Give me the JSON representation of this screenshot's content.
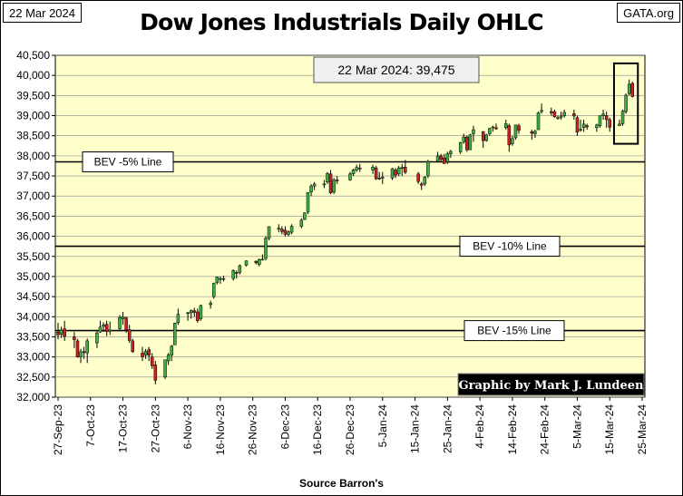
{
  "header": {
    "date": "22 Mar 2024",
    "site": "GATA.org",
    "title": "Dow Jones Industrials Daily OHLC"
  },
  "footer": {
    "source": "Source Barron's"
  },
  "colors": {
    "plot_background": "#FFFFCC",
    "up_candle": "#3CB043",
    "down_candle": "#CC2222",
    "grid": "#888888",
    "credit_background": "#000000",
    "credit_text": "#FFFFFF"
  },
  "chart_data": {
    "type": "ohlc",
    "title": "Dow Jones Industrials Daily OHLC",
    "ylim": [
      32000,
      40500
    ],
    "yticks": [
      32000,
      32500,
      33000,
      33500,
      34000,
      34500,
      35000,
      35500,
      36000,
      36500,
      37000,
      37500,
      38000,
      38500,
      39000,
      39500,
      40000,
      40500
    ],
    "ytick_labels": [
      "32,000",
      "32,500",
      "33,000",
      "33,500",
      "34,000",
      "34,500",
      "35,000",
      "35,500",
      "36,000",
      "36,500",
      "37,000",
      "37,500",
      "38,000",
      "38,500",
      "39,000",
      "39,500",
      "40,000",
      "40,500"
    ],
    "xlim": [
      "2023-09-27",
      "2024-03-25"
    ],
    "xticks": [
      "2023-09-27",
      "2023-10-07",
      "2023-10-17",
      "2023-10-27",
      "2023-11-06",
      "2023-11-16",
      "2023-11-26",
      "2023-12-06",
      "2023-12-16",
      "2023-12-26",
      "2024-01-05",
      "2024-01-15",
      "2024-01-25",
      "2024-02-04",
      "2024-02-14",
      "2024-02-24",
      "2024-03-05",
      "2024-03-15",
      "2024-03-25"
    ],
    "xtick_labels": [
      "27-Sep-23",
      "7-Oct-23",
      "17-Oct-23",
      "27-Oct-23",
      "6-Nov-23",
      "16-Nov-23",
      "26-Nov-23",
      "6-Dec-23",
      "16-Dec-23",
      "26-Dec-23",
      "5-Jan-24",
      "15-Jan-24",
      "25-Jan-24",
      "4-Feb-24",
      "14-Feb-24",
      "24-Feb-24",
      "5-Mar-24",
      "15-Mar-24",
      "25-Mar-24"
    ],
    "grid": "horizontal",
    "candles": [
      {
        "date": "2023-09-27",
        "open": 33620,
        "high": 33850,
        "low": 33440,
        "close": 33550
      },
      {
        "date": "2023-09-28",
        "open": 33560,
        "high": 33750,
        "low": 33470,
        "close": 33670
      },
      {
        "date": "2023-09-29",
        "open": 33700,
        "high": 33900,
        "low": 33400,
        "close": 33510
      },
      {
        "date": "2023-10-02",
        "open": 33500,
        "high": 33620,
        "low": 33220,
        "close": 33430
      },
      {
        "date": "2023-10-03",
        "open": 33400,
        "high": 33450,
        "low": 32980,
        "close": 33000
      },
      {
        "date": "2023-10-04",
        "open": 33000,
        "high": 33200,
        "low": 32850,
        "close": 33130
      },
      {
        "date": "2023-10-05",
        "open": 33130,
        "high": 33250,
        "low": 32950,
        "close": 33120
      },
      {
        "date": "2023-10-06",
        "open": 33100,
        "high": 33460,
        "low": 32850,
        "close": 33400
      },
      {
        "date": "2023-10-09",
        "open": 33350,
        "high": 33630,
        "low": 33220,
        "close": 33600
      },
      {
        "date": "2023-10-10",
        "open": 33620,
        "high": 33900,
        "low": 33600,
        "close": 33740
      },
      {
        "date": "2023-10-11",
        "open": 33760,
        "high": 33860,
        "low": 33620,
        "close": 33800
      },
      {
        "date": "2023-10-12",
        "open": 33810,
        "high": 33900,
        "low": 33520,
        "close": 33630
      },
      {
        "date": "2023-10-13",
        "open": 33640,
        "high": 33880,
        "low": 33550,
        "close": 33670
      },
      {
        "date": "2023-10-16",
        "open": 33700,
        "high": 34040,
        "low": 33680,
        "close": 33980
      },
      {
        "date": "2023-10-17",
        "open": 33950,
        "high": 34120,
        "low": 33800,
        "close": 34000
      },
      {
        "date": "2023-10-18",
        "open": 33970,
        "high": 34000,
        "low": 33600,
        "close": 33670
      },
      {
        "date": "2023-10-19",
        "open": 33680,
        "high": 33800,
        "low": 33350,
        "close": 33410
      },
      {
        "date": "2023-10-20",
        "open": 33400,
        "high": 33450,
        "low": 33100,
        "close": 33130
      },
      {
        "date": "2023-10-23",
        "open": 33100,
        "high": 33250,
        "low": 32900,
        "close": 33000
      },
      {
        "date": "2023-10-24",
        "open": 33050,
        "high": 33200,
        "low": 32950,
        "close": 33140
      },
      {
        "date": "2023-10-25",
        "open": 33180,
        "high": 33250,
        "low": 32900,
        "close": 33040
      },
      {
        "date": "2023-10-26",
        "open": 33000,
        "high": 33100,
        "low": 32700,
        "close": 32780
      },
      {
        "date": "2023-10-27",
        "open": 32800,
        "high": 32900,
        "low": 32320,
        "close": 32420
      },
      {
        "date": "2023-10-30",
        "open": 32500,
        "high": 32900,
        "low": 32450,
        "close": 32930
      },
      {
        "date": "2023-10-31",
        "open": 32900,
        "high": 33100,
        "low": 32800,
        "close": 33050
      },
      {
        "date": "2023-11-01",
        "open": 33050,
        "high": 33300,
        "low": 32900,
        "close": 33270
      },
      {
        "date": "2023-11-02",
        "open": 33300,
        "high": 33850,
        "low": 33300,
        "close": 33840
      },
      {
        "date": "2023-11-03",
        "open": 33850,
        "high": 34200,
        "low": 33800,
        "close": 34060
      },
      {
        "date": "2023-11-06",
        "open": 34080,
        "high": 34120,
        "low": 33900,
        "close": 34100
      },
      {
        "date": "2023-11-07",
        "open": 34100,
        "high": 34180,
        "low": 33950,
        "close": 34150
      },
      {
        "date": "2023-11-08",
        "open": 34150,
        "high": 34220,
        "low": 34000,
        "close": 34110
      },
      {
        "date": "2023-11-09",
        "open": 34120,
        "high": 34200,
        "low": 33850,
        "close": 33900
      },
      {
        "date": "2023-11-10",
        "open": 33950,
        "high": 34300,
        "low": 33900,
        "close": 34280
      },
      {
        "date": "2023-11-13",
        "open": 34300,
        "high": 34400,
        "low": 34200,
        "close": 34340
      },
      {
        "date": "2023-11-14",
        "open": 34500,
        "high": 34850,
        "low": 34450,
        "close": 34830
      },
      {
        "date": "2023-11-15",
        "open": 34850,
        "high": 35000,
        "low": 34800,
        "close": 34990
      },
      {
        "date": "2023-11-16",
        "open": 34950,
        "high": 35000,
        "low": 34820,
        "close": 34950
      },
      {
        "date": "2023-11-17",
        "open": 34940,
        "high": 35020,
        "low": 34880,
        "close": 34950
      },
      {
        "date": "2023-11-20",
        "open": 34950,
        "high": 35180,
        "low": 34900,
        "close": 35150
      },
      {
        "date": "2023-11-21",
        "open": 35100,
        "high": 35150,
        "low": 34950,
        "close": 35090
      },
      {
        "date": "2023-11-22",
        "open": 35100,
        "high": 35300,
        "low": 35050,
        "close": 35270
      },
      {
        "date": "2023-11-24",
        "open": 35280,
        "high": 35400,
        "low": 35250,
        "close": 35390
      },
      {
        "date": "2023-11-27",
        "open": 35380,
        "high": 35400,
        "low": 35300,
        "close": 35340
      },
      {
        "date": "2023-11-28",
        "open": 35300,
        "high": 35450,
        "low": 35250,
        "close": 35420
      },
      {
        "date": "2023-11-29",
        "open": 35430,
        "high": 35550,
        "low": 35400,
        "close": 35430
      },
      {
        "date": "2023-11-30",
        "open": 35450,
        "high": 36000,
        "low": 35400,
        "close": 35950
      },
      {
        "date": "2023-12-01",
        "open": 35950,
        "high": 36250,
        "low": 35900,
        "close": 36240
      },
      {
        "date": "2023-12-04",
        "open": 36200,
        "high": 36300,
        "low": 36100,
        "close": 36200
      },
      {
        "date": "2023-12-05",
        "open": 36180,
        "high": 36250,
        "low": 36050,
        "close": 36120
      },
      {
        "date": "2023-12-06",
        "open": 36150,
        "high": 36250,
        "low": 36000,
        "close": 36050
      },
      {
        "date": "2023-12-07",
        "open": 36050,
        "high": 36150,
        "low": 36000,
        "close": 36110
      },
      {
        "date": "2023-12-08",
        "open": 36100,
        "high": 36300,
        "low": 36050,
        "close": 36250
      },
      {
        "date": "2023-12-11",
        "open": 36250,
        "high": 36450,
        "low": 36200,
        "close": 36400
      },
      {
        "date": "2023-12-12",
        "open": 36420,
        "high": 36600,
        "low": 36400,
        "close": 36580
      },
      {
        "date": "2023-12-13",
        "open": 36600,
        "high": 37100,
        "low": 36550,
        "close": 37090
      },
      {
        "date": "2023-12-14",
        "open": 37100,
        "high": 37300,
        "low": 37000,
        "close": 37250
      },
      {
        "date": "2023-12-15",
        "open": 37250,
        "high": 37350,
        "low": 37150,
        "close": 37300
      },
      {
        "date": "2023-12-18",
        "open": 37300,
        "high": 37400,
        "low": 37200,
        "close": 37300
      },
      {
        "date": "2023-12-19",
        "open": 37350,
        "high": 37600,
        "low": 37300,
        "close": 37560
      },
      {
        "date": "2023-12-20",
        "open": 37550,
        "high": 37650,
        "low": 37050,
        "close": 37080
      },
      {
        "date": "2023-12-21",
        "open": 37100,
        "high": 37450,
        "low": 37050,
        "close": 37400
      },
      {
        "date": "2023-12-22",
        "open": 37400,
        "high": 37500,
        "low": 37300,
        "close": 37390
      },
      {
        "date": "2023-12-26",
        "open": 37400,
        "high": 37600,
        "low": 37380,
        "close": 37550
      },
      {
        "date": "2023-12-27",
        "open": 37550,
        "high": 37680,
        "low": 37500,
        "close": 37650
      },
      {
        "date": "2023-12-28",
        "open": 37650,
        "high": 37780,
        "low": 37600,
        "close": 37710
      },
      {
        "date": "2023-12-29",
        "open": 37700,
        "high": 37800,
        "low": 37600,
        "close": 37690
      },
      {
        "date": "2024-01-02",
        "open": 37650,
        "high": 37780,
        "low": 37550,
        "close": 37720
      },
      {
        "date": "2024-01-03",
        "open": 37700,
        "high": 37750,
        "low": 37400,
        "close": 37430
      },
      {
        "date": "2024-01-04",
        "open": 37450,
        "high": 37600,
        "low": 37400,
        "close": 37440
      },
      {
        "date": "2024-01-05",
        "open": 37450,
        "high": 37600,
        "low": 37300,
        "close": 37470
      },
      {
        "date": "2024-01-08",
        "open": 37450,
        "high": 37700,
        "low": 37400,
        "close": 37680
      },
      {
        "date": "2024-01-09",
        "open": 37650,
        "high": 37700,
        "low": 37450,
        "close": 37520
      },
      {
        "date": "2024-01-10",
        "open": 37550,
        "high": 37750,
        "low": 37500,
        "close": 37700
      },
      {
        "date": "2024-01-11",
        "open": 37700,
        "high": 37800,
        "low": 37500,
        "close": 37710
      },
      {
        "date": "2024-01-12",
        "open": 37720,
        "high": 37900,
        "low": 37550,
        "close": 37590
      },
      {
        "date": "2024-01-16",
        "open": 37550,
        "high": 37600,
        "low": 37300,
        "close": 37360
      },
      {
        "date": "2024-01-17",
        "open": 37300,
        "high": 37350,
        "low": 37150,
        "close": 37270
      },
      {
        "date": "2024-01-18",
        "open": 37300,
        "high": 37500,
        "low": 37250,
        "close": 37470
      },
      {
        "date": "2024-01-19",
        "open": 37500,
        "high": 37900,
        "low": 37450,
        "close": 37860
      },
      {
        "date": "2024-01-22",
        "open": 37870,
        "high": 38100,
        "low": 37850,
        "close": 38000
      },
      {
        "date": "2024-01-23",
        "open": 38000,
        "high": 38050,
        "low": 37850,
        "close": 37910
      },
      {
        "date": "2024-01-24",
        "open": 37950,
        "high": 38050,
        "low": 37800,
        "close": 37810
      },
      {
        "date": "2024-01-25",
        "open": 37850,
        "high": 38100,
        "low": 37800,
        "close": 38050
      },
      {
        "date": "2024-01-26",
        "open": 38050,
        "high": 38150,
        "low": 37950,
        "close": 38110
      },
      {
        "date": "2024-01-29",
        "open": 38100,
        "high": 38350,
        "low": 38050,
        "close": 38330
      },
      {
        "date": "2024-01-30",
        "open": 38350,
        "high": 38550,
        "low": 38300,
        "close": 38470
      },
      {
        "date": "2024-01-31",
        "open": 38470,
        "high": 38500,
        "low": 38100,
        "close": 38150
      },
      {
        "date": "2024-02-01",
        "open": 38150,
        "high": 38550,
        "low": 38150,
        "close": 38520
      },
      {
        "date": "2024-02-02",
        "open": 38550,
        "high": 38750,
        "low": 38350,
        "close": 38650
      },
      {
        "date": "2024-02-05",
        "open": 38600,
        "high": 38620,
        "low": 38200,
        "close": 38380
      },
      {
        "date": "2024-02-06",
        "open": 38380,
        "high": 38550,
        "low": 38350,
        "close": 38520
      },
      {
        "date": "2024-02-07",
        "open": 38550,
        "high": 38700,
        "low": 38500,
        "close": 38680
      },
      {
        "date": "2024-02-08",
        "open": 38700,
        "high": 38750,
        "low": 38600,
        "close": 38720
      },
      {
        "date": "2024-02-09",
        "open": 38700,
        "high": 38800,
        "low": 38650,
        "close": 38670
      },
      {
        "date": "2024-02-12",
        "open": 38700,
        "high": 38900,
        "low": 38650,
        "close": 38800
      },
      {
        "date": "2024-02-13",
        "open": 38750,
        "high": 38800,
        "low": 38100,
        "close": 38270
      },
      {
        "date": "2024-02-14",
        "open": 38300,
        "high": 38500,
        "low": 38250,
        "close": 38430
      },
      {
        "date": "2024-02-15",
        "open": 38450,
        "high": 38700,
        "low": 38400,
        "close": 38770
      },
      {
        "date": "2024-02-16",
        "open": 38750,
        "high": 38800,
        "low": 38550,
        "close": 38630
      },
      {
        "date": "2024-02-20",
        "open": 38600,
        "high": 38650,
        "low": 38400,
        "close": 38560
      },
      {
        "date": "2024-02-21",
        "open": 38550,
        "high": 38650,
        "low": 38450,
        "close": 38610
      },
      {
        "date": "2024-02-22",
        "open": 38650,
        "high": 39100,
        "low": 38650,
        "close": 39070
      },
      {
        "date": "2024-02-23",
        "open": 39100,
        "high": 39300,
        "low": 39050,
        "close": 39130
      },
      {
        "date": "2024-02-26",
        "open": 39100,
        "high": 39200,
        "low": 39000,
        "close": 39070
      },
      {
        "date": "2024-02-27",
        "open": 39100,
        "high": 39150,
        "low": 38950,
        "close": 38970
      },
      {
        "date": "2024-02-28",
        "open": 38950,
        "high": 39000,
        "low": 38900,
        "close": 38950
      },
      {
        "date": "2024-02-29",
        "open": 38960,
        "high": 39100,
        "low": 38900,
        "close": 38990
      },
      {
        "date": "2024-03-01",
        "open": 39000,
        "high": 39150,
        "low": 38950,
        "close": 39080
      },
      {
        "date": "2024-03-04",
        "open": 39050,
        "high": 39150,
        "low": 38900,
        "close": 38990
      },
      {
        "date": "2024-03-05",
        "open": 38950,
        "high": 39000,
        "low": 38500,
        "close": 38590
      },
      {
        "date": "2024-03-06",
        "open": 38650,
        "high": 38900,
        "low": 38600,
        "close": 38660
      },
      {
        "date": "2024-03-07",
        "open": 38700,
        "high": 38900,
        "low": 38600,
        "close": 38790
      },
      {
        "date": "2024-03-08",
        "open": 38750,
        "high": 38800,
        "low": 38650,
        "close": 38720
      },
      {
        "date": "2024-03-11",
        "open": 38700,
        "high": 38800,
        "low": 38600,
        "close": 38770
      },
      {
        "date": "2024-03-12",
        "open": 38750,
        "high": 39000,
        "low": 38700,
        "close": 39000
      },
      {
        "date": "2024-03-13",
        "open": 39000,
        "high": 39150,
        "low": 38900,
        "close": 39040
      },
      {
        "date": "2024-03-14",
        "open": 39000,
        "high": 39100,
        "low": 38700,
        "close": 38900
      },
      {
        "date": "2024-03-15",
        "open": 38900,
        "high": 38950,
        "low": 38600,
        "close": 38710
      },
      {
        "date": "2024-03-18",
        "open": 38750,
        "high": 38900,
        "low": 38750,
        "close": 38790
      },
      {
        "date": "2024-03-19",
        "open": 38800,
        "high": 39150,
        "low": 38750,
        "close": 39110
      },
      {
        "date": "2024-03-20",
        "open": 39100,
        "high": 39550,
        "low": 39050,
        "close": 39510
      },
      {
        "date": "2024-03-21",
        "open": 39550,
        "high": 39900,
        "low": 39500,
        "close": 39780
      },
      {
        "date": "2024-03-22",
        "open": 39800,
        "high": 39850,
        "low": 39450,
        "close": 39475
      }
    ],
    "reference_lines": [
      {
        "label": "BEV -5% Line",
        "value": 37851,
        "label_pos": "left"
      },
      {
        "label": "BEV -10% Line",
        "value": 35753,
        "label_pos": "center-right"
      },
      {
        "label": "BEV -15% Line",
        "value": 33655,
        "label_pos": "center-right"
      }
    ],
    "annotation": "22 Mar 2024:  39,475",
    "highlight_box": {
      "x_from": "2024-03-18",
      "x_to": "2024-03-22",
      "y_from": 38300,
      "y_to": 40300
    },
    "credit": "Graphic by Mark J. Lundeen"
  }
}
